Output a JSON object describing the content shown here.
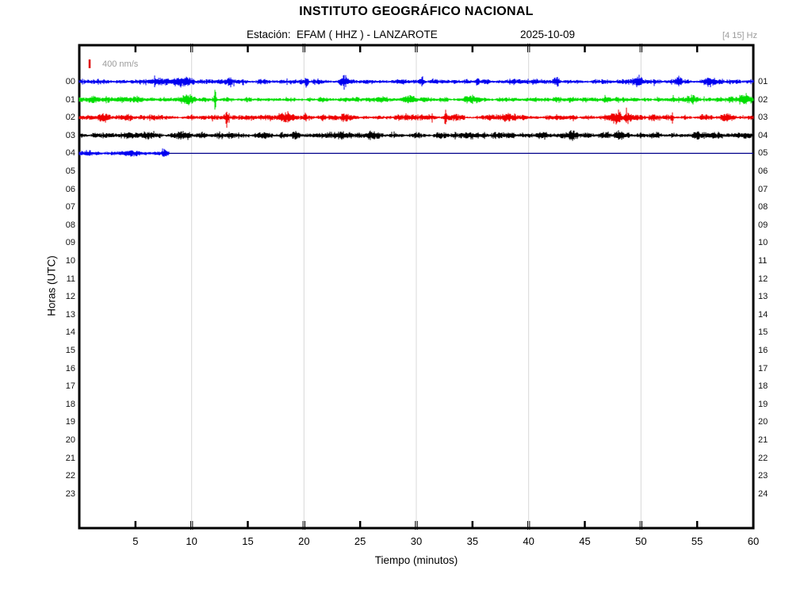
{
  "header": {
    "title": "INSTITUTO GEOGRÁFICO NACIONAL",
    "station_label": "Estación:  EFAM ( HHZ ) - LANZAROTE",
    "date": "2025-10-09",
    "filter": "[4 15] Hz"
  },
  "chart_data": {
    "type": "line",
    "kind": "helicorder-seismogram-daily",
    "station": "EFAM",
    "channel": "HHZ",
    "location": "LANZAROTE",
    "date": "2025-10-09",
    "filter_band_hz": [
      4,
      15
    ],
    "scale_label": "400 nm/s",
    "scale_nm_per_s": 400,
    "xlabel": "Tiempo (minutos)",
    "ylabel": "Horas (UTC)",
    "xlim": [
      0,
      60
    ],
    "x_ticks": [
      5,
      10,
      15,
      20,
      25,
      30,
      35,
      40,
      45,
      50,
      55,
      60
    ],
    "grid_minutes": [
      10,
      20,
      30,
      40,
      50
    ],
    "hours_left": [
      "00",
      "01",
      "02",
      "03",
      "04",
      "05",
      "06",
      "07",
      "08",
      "09",
      "10",
      "11",
      "12",
      "13",
      "14",
      "15",
      "16",
      "17",
      "18",
      "19",
      "20",
      "21",
      "22",
      "23"
    ],
    "hours_right": [
      "01",
      "02",
      "03",
      "04",
      "05",
      "06",
      "07",
      "08",
      "09",
      "10",
      "11",
      "12",
      "13",
      "14",
      "15",
      "16",
      "17",
      "18",
      "19",
      "20",
      "21",
      "22",
      "23",
      "24"
    ],
    "colors": {
      "trace_blue": "#0000f0",
      "trace_green": "#00dd00",
      "trace_red": "#ee0000",
      "trace_black": "#000000",
      "flatline_blue": "#00008b",
      "grid": "#d8d8d8",
      "axis": "#000000",
      "muted_text": "#9a9a9a",
      "scale_marker": "#dd0000"
    },
    "traces": [
      {
        "hour": "00",
        "row": 0,
        "color": "#0000f0",
        "start_min": 0,
        "end_min": 60,
        "base_amp": 2.2,
        "seed": 11,
        "spikes": [
          {
            "m": 7.5,
            "a": 2.2,
            "w": 0.8
          },
          {
            "m": 9.3,
            "a": 2.6,
            "w": 0.6
          },
          {
            "m": 13.4,
            "a": 4.5,
            "w": 0.12
          },
          {
            "m": 20.2,
            "a": 4.0,
            "w": 0.1
          },
          {
            "m": 23.5,
            "a": 3.2,
            "w": 0.3
          },
          {
            "m": 30.5,
            "a": 3.5,
            "w": 0.15
          },
          {
            "m": 35.4,
            "a": 3.5,
            "w": 0.12
          },
          {
            "m": 42.5,
            "a": 3.2,
            "w": 0.2
          },
          {
            "m": 49.8,
            "a": 3.6,
            "w": 0.25
          },
          {
            "m": 53.3,
            "a": 3.2,
            "w": 0.15
          },
          {
            "m": 56.3,
            "a": 2.8,
            "w": 0.3
          }
        ]
      },
      {
        "hour": "01",
        "row": 1,
        "color": "#00dd00",
        "start_min": 0,
        "end_min": 60,
        "base_amp": 2.4,
        "seed": 22,
        "spikes": [
          {
            "m": 1.2,
            "a": 2.0,
            "w": 0.5
          },
          {
            "m": 5.0,
            "a": 2.4,
            "w": 0.4
          },
          {
            "m": 9.6,
            "a": 2.4,
            "w": 0.4
          },
          {
            "m": 12.1,
            "a": 9.0,
            "w": 0.07
          },
          {
            "m": 29.3,
            "a": 2.4,
            "w": 0.3
          },
          {
            "m": 34.8,
            "a": 2.0,
            "w": 0.3
          },
          {
            "m": 54.6,
            "a": 2.4,
            "w": 0.4
          },
          {
            "m": 59.3,
            "a": 2.8,
            "w": 0.3
          }
        ]
      },
      {
        "hour": "02",
        "row": 2,
        "color": "#ee0000",
        "start_min": 0,
        "end_min": 60,
        "base_amp": 2.3,
        "seed": 33,
        "spikes": [
          {
            "m": 2.0,
            "a": 1.8,
            "w": 0.5
          },
          {
            "m": 13.1,
            "a": 5.0,
            "w": 0.07
          },
          {
            "m": 18.5,
            "a": 4.2,
            "w": 0.45
          },
          {
            "m": 20.1,
            "a": 2.8,
            "w": 0.1
          },
          {
            "m": 24.0,
            "a": 1.8,
            "w": 0.4
          },
          {
            "m": 32.6,
            "a": 6.5,
            "w": 0.06
          },
          {
            "m": 38.0,
            "a": 1.8,
            "w": 0.4
          },
          {
            "m": 47.8,
            "a": 3.8,
            "w": 0.3
          },
          {
            "m": 48.9,
            "a": 3.8,
            "w": 0.25
          },
          {
            "m": 52.8,
            "a": 5.0,
            "w": 0.07
          },
          {
            "m": 57.5,
            "a": 2.4,
            "w": 0.3
          }
        ]
      },
      {
        "hour": "03",
        "row": 3,
        "color": "#000000",
        "start_min": 0,
        "end_min": 60,
        "base_amp": 2.6,
        "seed": 44,
        "spikes": [
          {
            "m": 5.5,
            "a": 1.4,
            "w": 0.6
          },
          {
            "m": 9.2,
            "a": 1.8,
            "w": 0.4
          },
          {
            "m": 16.5,
            "a": 1.8,
            "w": 0.4
          },
          {
            "m": 19.3,
            "a": 2.8,
            "w": 0.15
          },
          {
            "m": 23.3,
            "a": 2.4,
            "w": 0.2
          },
          {
            "m": 26.0,
            "a": 1.8,
            "w": 0.4
          },
          {
            "m": 34.5,
            "a": 1.8,
            "w": 0.3
          },
          {
            "m": 38.5,
            "a": 2.4,
            "w": 0.2
          },
          {
            "m": 41.0,
            "a": 1.8,
            "w": 0.3
          },
          {
            "m": 44.0,
            "a": 2.4,
            "w": 0.25
          },
          {
            "m": 48.0,
            "a": 1.8,
            "w": 0.3
          },
          {
            "m": 55.0,
            "a": 2.4,
            "w": 0.3
          }
        ]
      },
      {
        "hour": "04",
        "row": 4,
        "color": "#0000f0",
        "start_min": 0,
        "end_min": 8,
        "base_amp": 2.3,
        "seed": 55,
        "flat_to_min": 60,
        "flat_color": "#00008b",
        "spikes": [
          {
            "m": 4.5,
            "a": 1.8,
            "w": 0.4
          },
          {
            "m": 7.6,
            "a": 2.6,
            "w": 0.15
          }
        ]
      }
    ]
  }
}
